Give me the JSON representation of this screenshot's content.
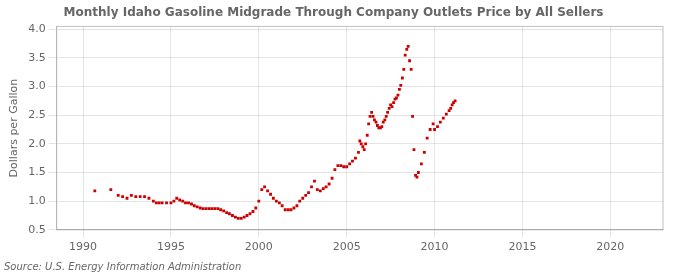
{
  "chart_data": {
    "type": "scatter",
    "title": "Monthly Idaho Gasoline Midgrade Through Company Outlets Price by All Sellers",
    "ylabel": "Dollars per Gallon",
    "annotations": [
      "Source: U.S. Energy Information Administration"
    ],
    "color": "#cc0000",
    "marker": "square",
    "grid": true,
    "xlim": [
      1988.5,
      2023
    ],
    "ylim": [
      0.5,
      4.05
    ],
    "xticks": [
      1990,
      1995,
      2000,
      2005,
      2010,
      2015,
      2020
    ],
    "yticks": [
      0.5,
      {
        "value": 1.0,
        "label": "1.0"
      },
      1.5,
      {
        "value": 2.0,
        "label": "2.0"
      },
      2.5,
      {
        "value": 3.0,
        "label": "3.0"
      },
      3.5,
      {
        "value": 4.0,
        "label": "4.0"
      }
    ],
    "x": [
      1990.67,
      1991.58,
      1992.0,
      1992.25,
      1992.5,
      1992.75,
      1993.0,
      1993.25,
      1993.5,
      1993.75,
      1994.0,
      1994.17,
      1994.33,
      1994.5,
      1994.75,
      1995.0,
      1995.17,
      1995.33,
      1995.5,
      1995.67,
      1995.83,
      1996.0,
      1996.17,
      1996.33,
      1996.5,
      1996.67,
      1996.83,
      1997.0,
      1997.17,
      1997.33,
      1997.5,
      1997.67,
      1997.83,
      1998.0,
      1998.17,
      1998.33,
      1998.5,
      1998.67,
      1998.83,
      1999.0,
      1999.17,
      1999.33,
      1999.5,
      1999.67,
      1999.83,
      2000.0,
      2000.17,
      2000.33,
      2000.5,
      2000.67,
      2000.83,
      2001.0,
      2001.17,
      2001.33,
      2001.5,
      2001.67,
      2001.83,
      2002.0,
      2002.17,
      2002.33,
      2002.5,
      2002.67,
      2002.83,
      2003.0,
      2003.17,
      2003.33,
      2003.5,
      2003.67,
      2003.83,
      2004.0,
      2004.17,
      2004.33,
      2004.5,
      2004.67,
      2004.83,
      2005.0,
      2005.17,
      2005.33,
      2005.5,
      2005.67,
      2005.75,
      2005.83,
      2005.92,
      2006.0,
      2006.08,
      2006.17,
      2006.25,
      2006.33,
      2006.42,
      2006.5,
      2006.58,
      2006.67,
      2006.75,
      2006.83,
      2006.92,
      2007.0,
      2007.08,
      2007.17,
      2007.25,
      2007.33,
      2007.42,
      2007.5,
      2007.58,
      2007.67,
      2007.75,
      2007.83,
      2007.92,
      2008.0,
      2008.08,
      2008.17,
      2008.25,
      2008.33,
      2008.42,
      2008.5,
      2008.58,
      2008.67,
      2008.75,
      2008.83,
      2008.92,
      2009.0,
      2009.08,
      2009.25,
      2009.42,
      2009.58,
      2009.75,
      2009.92,
      2010.0,
      2010.17,
      2010.33,
      2010.5,
      2010.67,
      2010.83,
      2010.92,
      2011.0,
      2011.08,
      2011.17
    ],
    "values": [
      1.18,
      1.2,
      1.1,
      1.08,
      1.05,
      1.1,
      1.08,
      1.08,
      1.08,
      1.05,
      1.0,
      0.97,
      0.97,
      0.97,
      0.97,
      0.97,
      1.0,
      1.05,
      1.02,
      1.0,
      0.97,
      0.97,
      0.95,
      0.92,
      0.9,
      0.88,
      0.87,
      0.87,
      0.87,
      0.87,
      0.87,
      0.87,
      0.85,
      0.83,
      0.8,
      0.78,
      0.75,
      0.72,
      0.7,
      0.7,
      0.72,
      0.75,
      0.78,
      0.82,
      0.88,
      1.0,
      1.2,
      1.25,
      1.18,
      1.12,
      1.05,
      1.0,
      0.97,
      0.92,
      0.85,
      0.85,
      0.85,
      0.88,
      0.92,
      1.0,
      1.05,
      1.1,
      1.15,
      1.25,
      1.35,
      1.2,
      1.18,
      1.22,
      1.25,
      1.3,
      1.4,
      1.55,
      1.62,
      1.62,
      1.6,
      1.6,
      1.65,
      1.7,
      1.75,
      1.85,
      2.05,
      2.0,
      1.95,
      1.9,
      2.0,
      2.15,
      2.35,
      2.48,
      2.55,
      2.48,
      2.42,
      2.38,
      2.32,
      2.28,
      2.28,
      2.3,
      2.38,
      2.42,
      2.48,
      2.55,
      2.62,
      2.68,
      2.65,
      2.72,
      2.78,
      2.8,
      2.85,
      2.95,
      3.02,
      3.15,
      3.3,
      3.55,
      3.65,
      3.7,
      3.45,
      3.3,
      2.48,
      1.9,
      1.45,
      1.42,
      1.5,
      1.65,
      1.85,
      2.1,
      2.25,
      2.35,
      2.25,
      2.3,
      2.38,
      2.45,
      2.52,
      2.58,
      2.62,
      2.68,
      2.72,
      2.75
    ]
  }
}
